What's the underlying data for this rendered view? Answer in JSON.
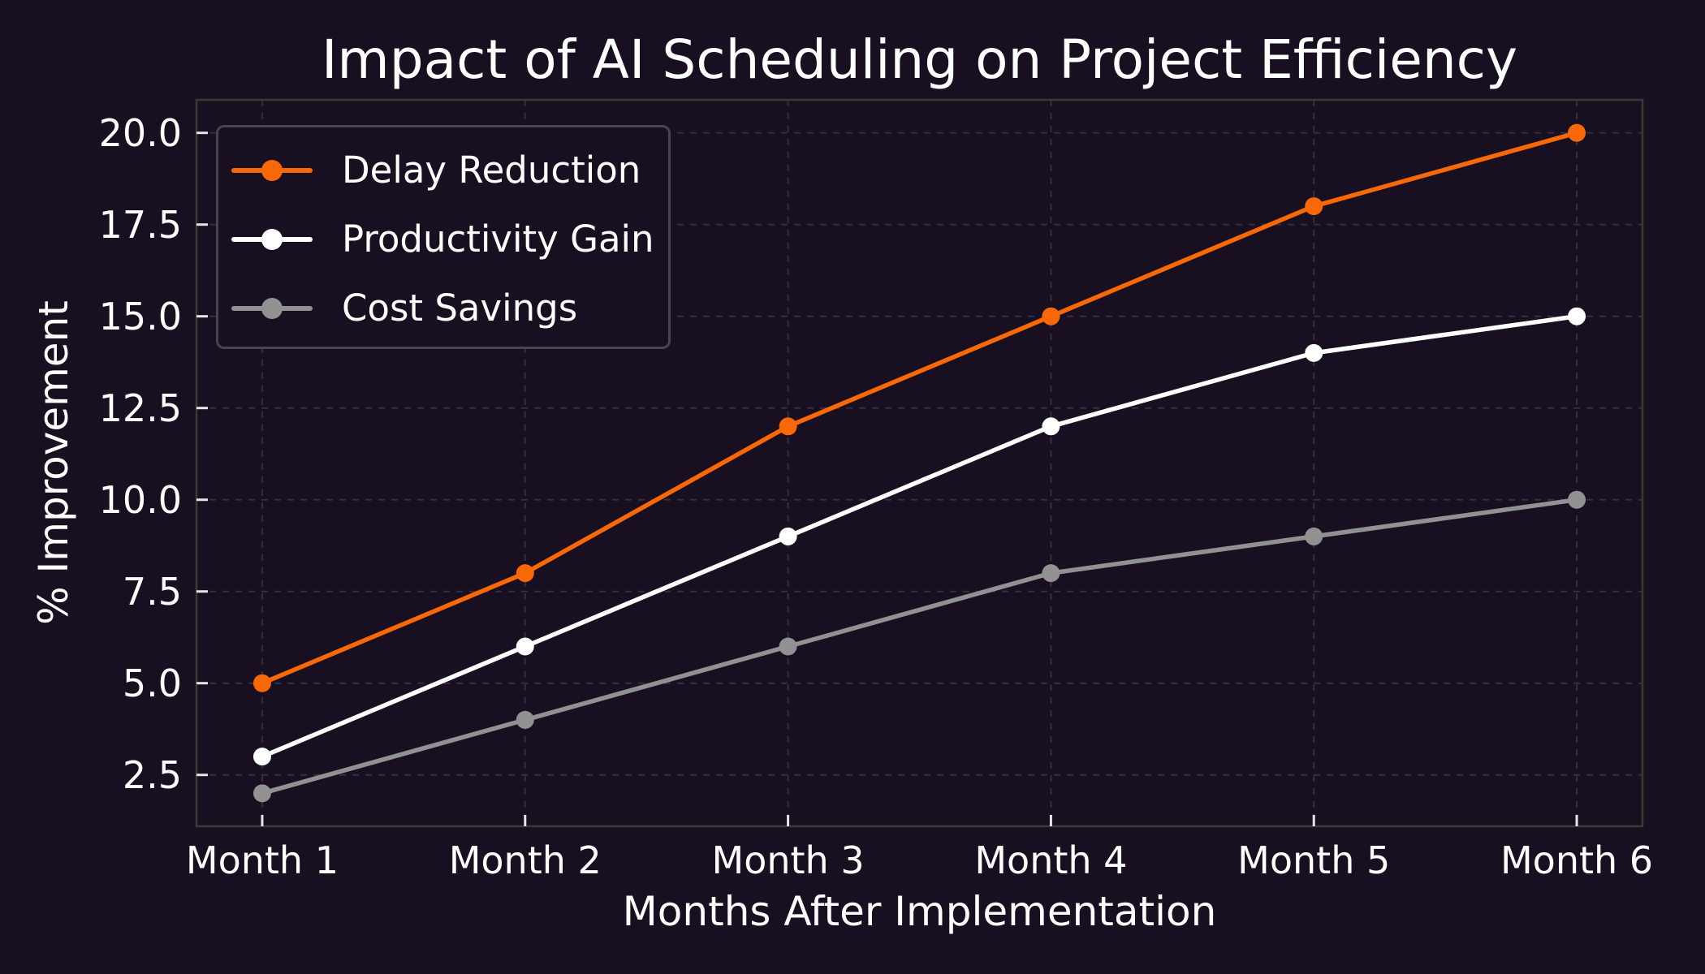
{
  "chart_data": {
    "type": "line",
    "title": "Impact of AI Scheduling on Project Efficiency",
    "xlabel": "Months After Implementation",
    "ylabel": "% Improvement",
    "categories": [
      "Month 1",
      "Month 2",
      "Month 3",
      "Month 4",
      "Month 5",
      "Month 6"
    ],
    "series": [
      {
        "name": "Delay Reduction",
        "color": "#f86806",
        "values": [
          5,
          8,
          12,
          15,
          18,
          20
        ]
      },
      {
        "name": "Productivity Gain",
        "color": "#ffffff",
        "values": [
          3,
          6,
          9,
          12,
          14,
          15
        ]
      },
      {
        "name": "Cost Savings",
        "color": "#919191",
        "values": [
          2,
          4,
          6,
          8,
          9,
          10
        ]
      }
    ],
    "y_tick_labels": [
      "2.5",
      "5.0",
      "7.5",
      "10.0",
      "12.5",
      "15.0",
      "17.5",
      "20.0"
    ],
    "ylim": [
      1.1,
      20.9
    ],
    "xlim": [
      -0.25,
      5.25
    ],
    "grid": true,
    "grid_style": "dashed",
    "legend_position": "upper left",
    "theme": {
      "background": "#180f21",
      "text_color": "#ffffff",
      "grid_color": "#342e40",
      "spine_color": "#363b33",
      "tick_color": "#e6e6e6",
      "legend_border": "#45454a"
    }
  }
}
